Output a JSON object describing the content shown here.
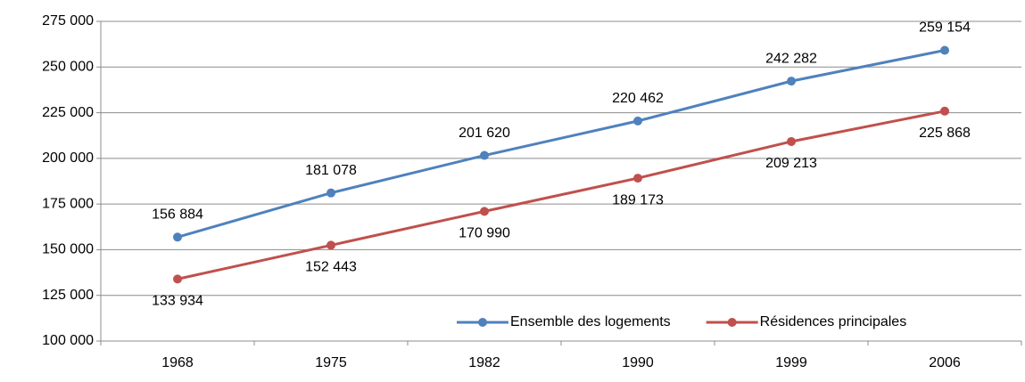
{
  "chart_data": {
    "type": "line",
    "categories": [
      "1968",
      "1975",
      "1982",
      "1990",
      "1999",
      "2006"
    ],
    "series": [
      {
        "name": "Ensemble des logements",
        "color": "#4f81bd",
        "values": [
          156884,
          181078,
          201620,
          220462,
          242282,
          259154
        ],
        "value_labels": [
          "156 884",
          "181 078",
          "201 620",
          "220 462",
          "242 282",
          "259 154"
        ]
      },
      {
        "name": "Résidences principales",
        "color": "#c0504d",
        "values": [
          133934,
          152443,
          170990,
          189173,
          209213,
          225868
        ],
        "value_labels": [
          "133 934",
          "152 443",
          "170 990",
          "189 173",
          "209 213",
          "225 868"
        ]
      }
    ],
    "ylim": [
      100000,
      275000
    ],
    "yticks": [
      {
        "value": 100000,
        "label": "100 000"
      },
      {
        "value": 125000,
        "label": "125 000"
      },
      {
        "value": 150000,
        "label": "150 000"
      },
      {
        "value": 175000,
        "label": "175 000"
      },
      {
        "value": 200000,
        "label": "200 000"
      },
      {
        "value": 225000,
        "label": "225 000"
      },
      {
        "value": 250000,
        "label": "250 000"
      },
      {
        "value": 275000,
        "label": "275 000"
      }
    ],
    "grid": true,
    "legend": "bottom-right"
  }
}
